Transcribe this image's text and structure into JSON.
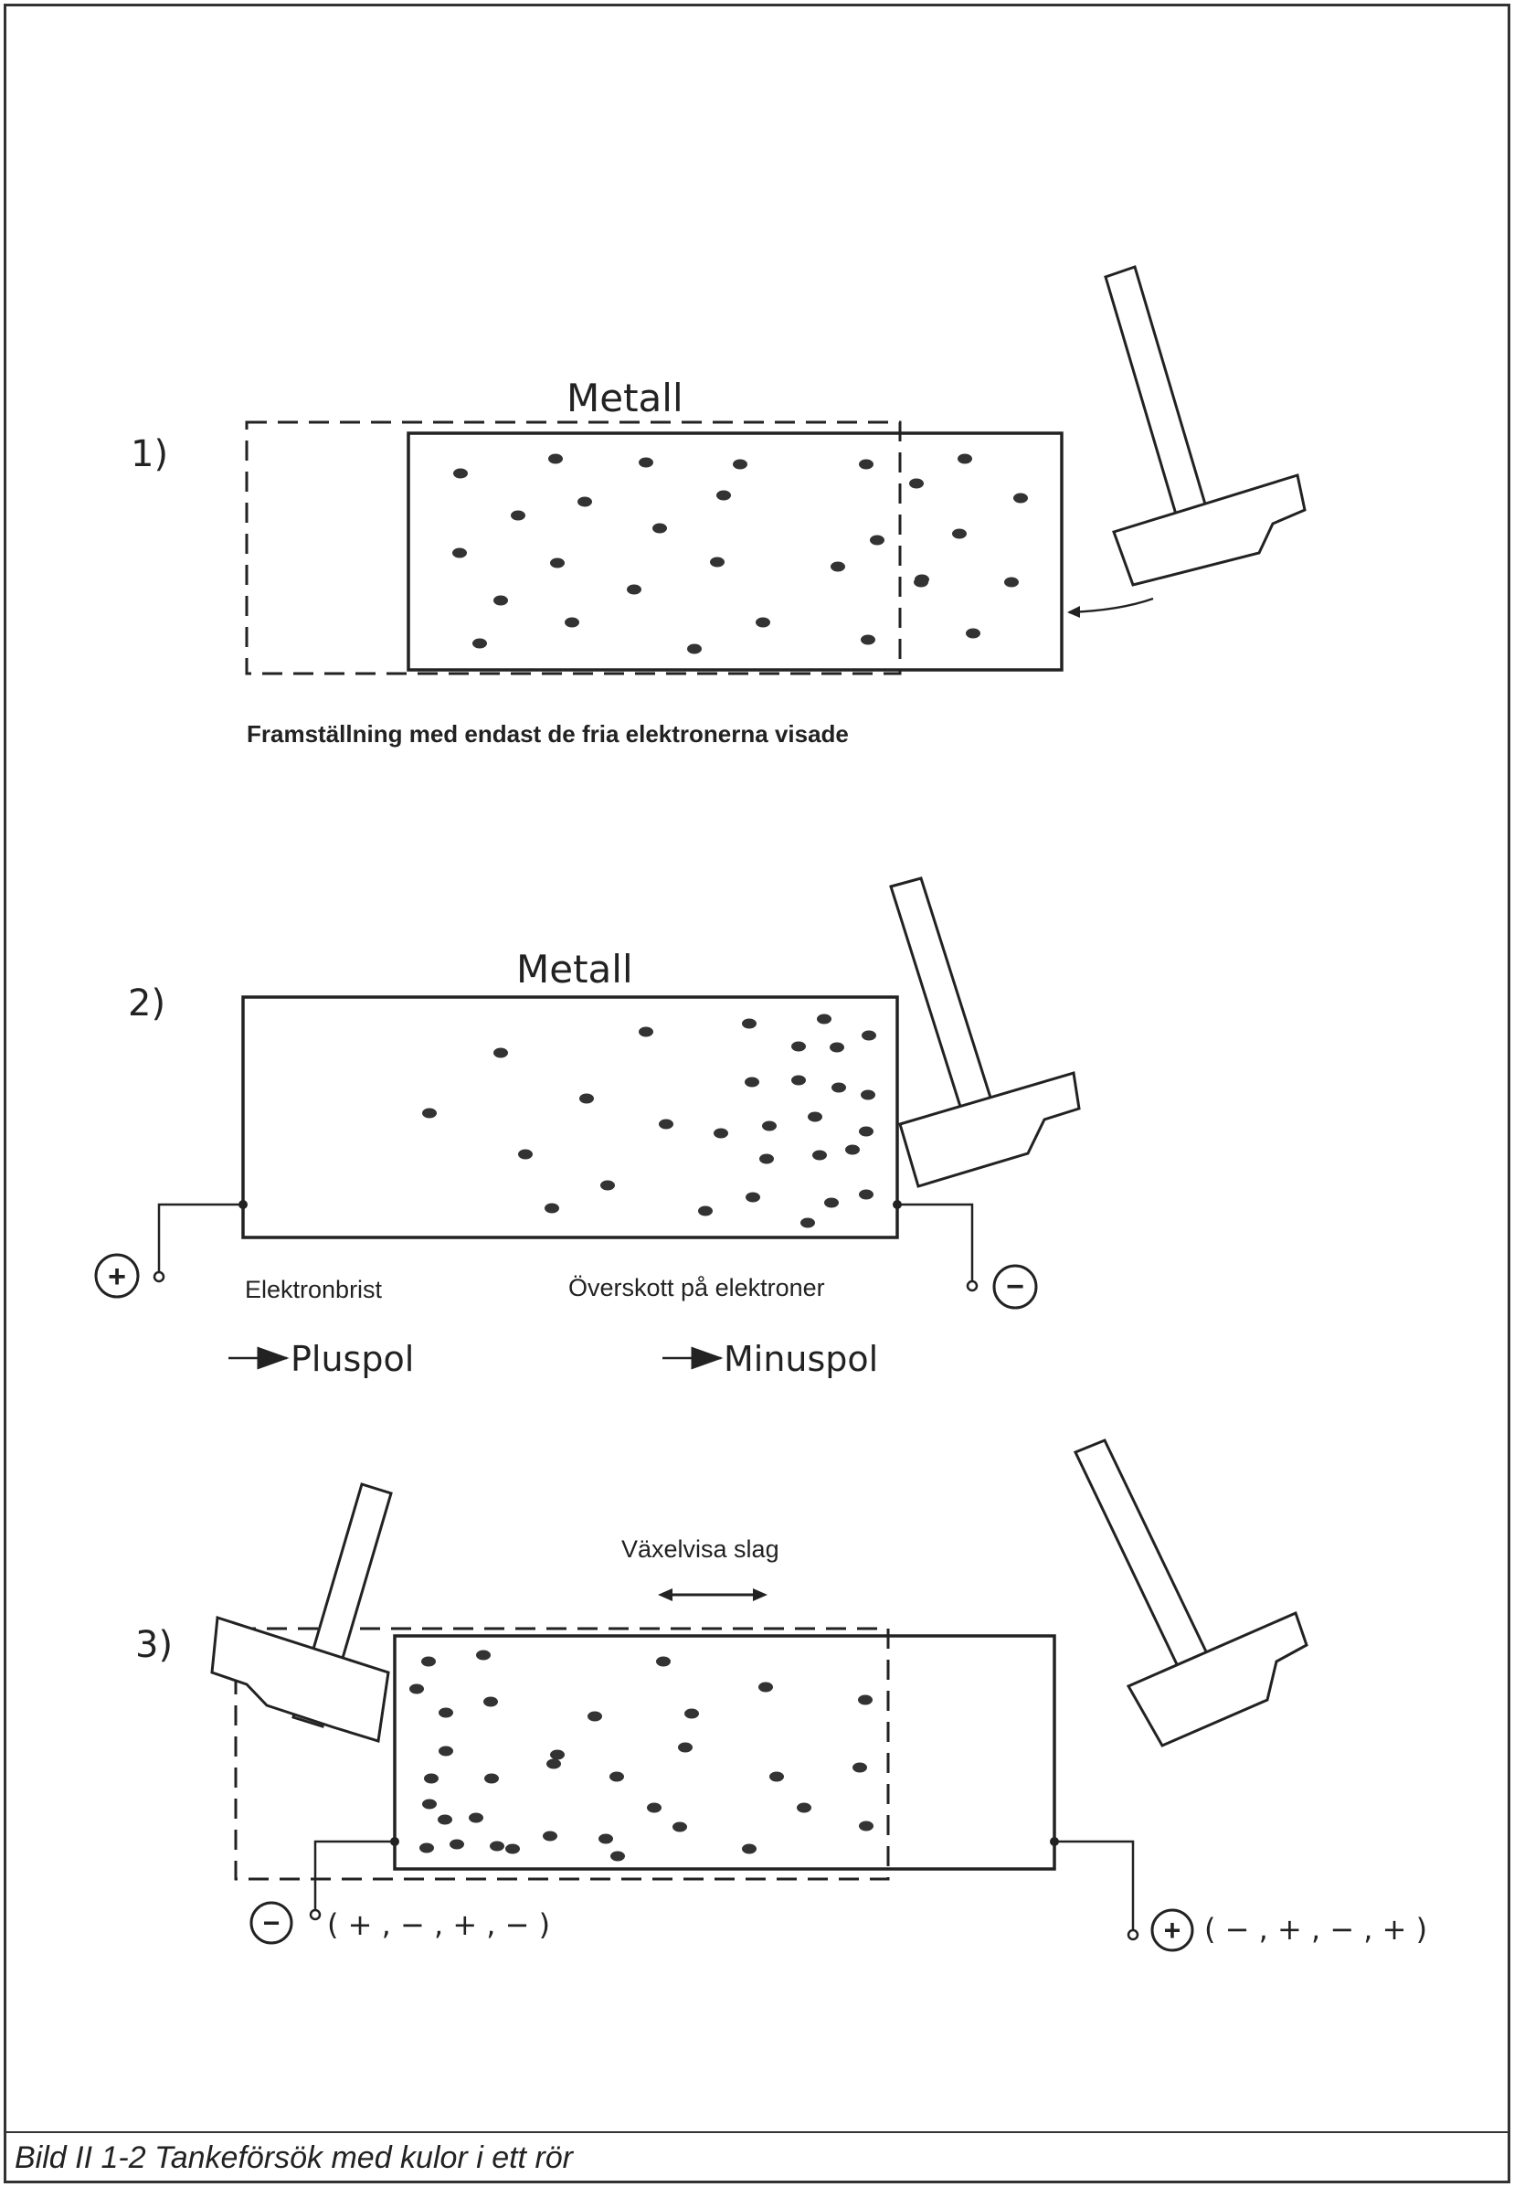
{
  "panel1": {
    "number": "1)",
    "metal_label": "Metall",
    "caption": "Framställning med endast de fria elektronerna visade"
  },
  "panel2": {
    "number": "2)",
    "metal_label": "Metall",
    "left_label": "Elektronbrist",
    "right_label": "Överskott på elektroner",
    "left_pole": "Pluspol",
    "right_pole": "Minuspol",
    "plus_symbol": "+",
    "minus_symbol": "−"
  },
  "panel3": {
    "number": "3)",
    "top_label": "Växelvisa slag",
    "left_sequence": "( + , − , + , − )",
    "right_sequence": "( − , + , − , + )",
    "plus_symbol": "+",
    "minus_symbol": "−"
  },
  "figure_caption": "Bild  II 1-2  Tankeförsök med kulor i ett rör"
}
